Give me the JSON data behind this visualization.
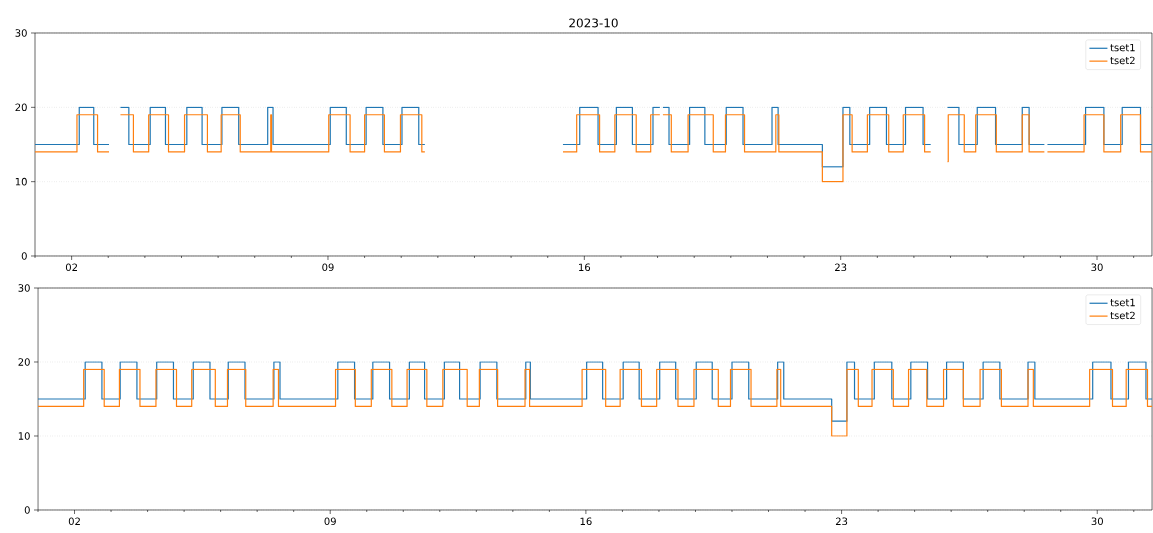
{
  "chart_data": [
    {
      "type": "step",
      "title": "2023-10",
      "xlim": [
        "2023-10-01T00:00",
        "2023-10-31T12:00"
      ],
      "ylim": [
        0,
        30
      ],
      "yticks": [
        0,
        10,
        20,
        30
      ],
      "grid": "y",
      "legend": "top right",
      "xticks": [
        {
          "value": "2023-10-01",
          "label": null
        },
        {
          "value": "2023-10-02",
          "label": "02"
        },
        {
          "value": "2023-10-03",
          "label": null
        },
        {
          "value": "2023-10-04",
          "label": null
        },
        {
          "value": "2023-10-05",
          "label": null
        },
        {
          "value": "2023-10-06",
          "label": null
        },
        {
          "value": "2023-10-07",
          "label": null
        },
        {
          "value": "2023-10-08",
          "label": null
        },
        {
          "value": "2023-10-09",
          "label": "09"
        },
        {
          "value": "2023-10-10",
          "label": null
        },
        {
          "value": "2023-10-11",
          "label": null
        },
        {
          "value": "2023-10-12",
          "label": null
        },
        {
          "value": "2023-10-13",
          "label": null
        },
        {
          "value": "2023-10-14",
          "label": null
        },
        {
          "value": "2023-10-15",
          "label": null
        },
        {
          "value": "2023-10-16",
          "label": "16"
        },
        {
          "value": "2023-10-17",
          "label": null
        },
        {
          "value": "2023-10-18",
          "label": null
        },
        {
          "value": "2023-10-19",
          "label": null
        },
        {
          "value": "2023-10-20",
          "label": null
        },
        {
          "value": "2023-10-21",
          "label": null
        },
        {
          "value": "2023-10-22",
          "label": null
        },
        {
          "value": "2023-10-23",
          "label": "23"
        },
        {
          "value": "2023-10-24",
          "label": null
        },
        {
          "value": "2023-10-25",
          "label": null
        },
        {
          "value": "2023-10-26",
          "label": null
        },
        {
          "value": "2023-10-27",
          "label": null
        },
        {
          "value": "2023-10-28",
          "label": null
        },
        {
          "value": "2023-10-29",
          "label": null
        },
        {
          "value": "2023-10-30",
          "label": "30"
        },
        {
          "value": "2023-10-31",
          "label": null
        }
      ],
      "series": [
        {
          "name": "tset1",
          "color": "#1f77b4",
          "x": [
            "2023-10-01T00:00",
            "2023-10-02T05:00",
            "2023-10-02T14:30",
            "2023-10-03T00:30",
            "2023-10-03T04:00",
            "2023-10-03T08:00",
            "2023-10-03T13:30",
            "2023-10-04T03:30",
            "2023-10-04T13:30",
            "2023-10-05T03:30",
            "2023-10-05T13:30",
            "2023-10-06T02:30",
            "2023-10-06T13:30",
            "2023-10-07T08:30",
            "2023-10-07T12:00",
            "2023-10-09T01:30",
            "2023-10-09T12:00",
            "2023-10-10T01:00",
            "2023-10-10T12:00",
            "2023-10-11T00:30",
            "2023-10-11T11:30",
            "2023-10-11T15:30",
            "2023-10-13T00:00",
            "2023-10-15T10:00",
            "2023-10-15T21:00",
            "2023-10-16T09:00",
            "2023-10-16T21:00",
            "2023-10-17T07:30",
            "2023-10-17T21:00",
            "2023-10-18T01:30",
            "2023-10-18T02:30",
            "2023-10-18T03:30",
            "2023-10-18T07:30",
            "2023-10-18T21:00",
            "2023-10-19T07:00",
            "2023-10-19T21:00",
            "2023-10-20T08:00",
            "2023-10-21T03:00",
            "2023-10-21T07:00",
            "2023-10-22T12:00",
            "2023-10-23T01:30",
            "2023-10-23T06:00",
            "2023-10-23T19:00",
            "2023-10-24T06:00",
            "2023-10-24T18:30",
            "2023-10-25T06:00",
            "2023-10-25T11:00",
            "2023-10-25T16:00",
            "2023-10-25T22:00",
            "2023-10-26T05:30",
            "2023-10-26T17:30",
            "2023-10-27T05:30",
            "2023-10-27T23:00",
            "2023-10-28T03:30",
            "2023-10-28T13:30",
            "2023-10-28T14:30",
            "2023-10-28T15:30",
            "2023-10-29T16:30",
            "2023-10-30T04:30",
            "2023-10-30T16:30",
            "2023-10-31T04:30",
            "2023-10-31T12:00"
          ],
          "values": [
            15,
            20,
            15,
            15,
            null,
            20,
            15,
            20,
            15,
            20,
            15,
            20,
            15,
            20,
            15,
            20,
            15,
            20,
            15,
            20,
            15,
            15,
            null,
            15,
            20,
            15,
            20,
            15,
            20,
            20,
            null,
            20,
            15,
            20,
            15,
            20,
            15,
            20,
            15,
            12,
            20,
            15,
            20,
            15,
            20,
            15,
            15,
            null,
            20,
            15,
            20,
            15,
            20,
            15,
            15,
            null,
            15,
            20,
            15,
            20,
            15,
            15
          ]
        },
        {
          "name": "tset2",
          "color": "#ff7f0e",
          "x": [
            "2023-10-01T00:00",
            "2023-10-02T03:30",
            "2023-10-02T17:00",
            "2023-10-03T00:30",
            "2023-10-03T04:00",
            "2023-10-03T08:00",
            "2023-10-03T16:30",
            "2023-10-04T02:30",
            "2023-10-04T15:30",
            "2023-10-05T02:00",
            "2023-10-05T17:00",
            "2023-10-06T02:00",
            "2023-10-06T14:30",
            "2023-10-07T10:30",
            "2023-10-07T11:00",
            "2023-10-09T00:30",
            "2023-10-09T14:30",
            "2023-10-10T00:00",
            "2023-10-10T13:00",
            "2023-10-10T23:30",
            "2023-10-11T13:30",
            "2023-10-11T15:30",
            "2023-10-13T00:00",
            "2023-10-15T10:00",
            "2023-10-15T19:00",
            "2023-10-16T10:00",
            "2023-10-16T20:00",
            "2023-10-17T10:00",
            "2023-10-17T19:30",
            "2023-10-18T01:30",
            "2023-10-18T02:30",
            "2023-10-18T03:30",
            "2023-10-18T09:00",
            "2023-10-18T20:00",
            "2023-10-19T12:30",
            "2023-10-19T20:30",
            "2023-10-20T09:00",
            "2023-10-21T05:30",
            "2023-10-21T07:30",
            "2023-10-22T12:00",
            "2023-10-23T01:30",
            "2023-10-23T07:30",
            "2023-10-23T17:30",
            "2023-10-24T07:30",
            "2023-10-24T17:00",
            "2023-10-25T07:00",
            "2023-10-25T11:00",
            "2023-10-25T16:00",
            "2023-10-25T22:00",
            "2023-10-25T22:30",
            "2023-10-26T09:00",
            "2023-10-26T16:30",
            "2023-10-27T06:00",
            "2023-10-27T23:00",
            "2023-10-28T03:30",
            "2023-10-28T13:30",
            "2023-10-28T14:30",
            "2023-10-28T15:30",
            "2023-10-29T15:30",
            "2023-10-30T04:30",
            "2023-10-30T15:30",
            "2023-10-31T04:30",
            "2023-10-31T12:00"
          ],
          "values": [
            14,
            19,
            14,
            14,
            null,
            19,
            14,
            19,
            14,
            19,
            14,
            19,
            14,
            19,
            14,
            19,
            14,
            19,
            14,
            19,
            14,
            14,
            null,
            14,
            19,
            14,
            19,
            14,
            19,
            19,
            null,
            19,
            14,
            19,
            14,
            19,
            14,
            19,
            14,
            10,
            19,
            14,
            19,
            14,
            19,
            14,
            14,
            null,
            12.7,
            19,
            14,
            19,
            14,
            19,
            14,
            14,
            null,
            14,
            19,
            14,
            19,
            14,
            14
          ]
        }
      ]
    },
    {
      "type": "step",
      "xlim": [
        "2023-10-01T00:00",
        "2023-10-31T12:00"
      ],
      "ylim": [
        0,
        30
      ],
      "yticks": [
        0,
        10,
        20,
        30
      ],
      "grid": "y",
      "legend": "top right",
      "xticks": [
        {
          "value": "2023-10-01",
          "label": null
        },
        {
          "value": "2023-10-02",
          "label": "02"
        },
        {
          "value": "2023-10-03",
          "label": null
        },
        {
          "value": "2023-10-04",
          "label": null
        },
        {
          "value": "2023-10-05",
          "label": null
        },
        {
          "value": "2023-10-06",
          "label": null
        },
        {
          "value": "2023-10-07",
          "label": null
        },
        {
          "value": "2023-10-08",
          "label": null
        },
        {
          "value": "2023-10-09",
          "label": "09"
        },
        {
          "value": "2023-10-10",
          "label": null
        },
        {
          "value": "2023-10-11",
          "label": null
        },
        {
          "value": "2023-10-12",
          "label": null
        },
        {
          "value": "2023-10-13",
          "label": null
        },
        {
          "value": "2023-10-14",
          "label": null
        },
        {
          "value": "2023-10-15",
          "label": null
        },
        {
          "value": "2023-10-16",
          "label": "16"
        },
        {
          "value": "2023-10-17",
          "label": null
        },
        {
          "value": "2023-10-18",
          "label": null
        },
        {
          "value": "2023-10-19",
          "label": null
        },
        {
          "value": "2023-10-20",
          "label": null
        },
        {
          "value": "2023-10-21",
          "label": null
        },
        {
          "value": "2023-10-22",
          "label": null
        },
        {
          "value": "2023-10-23",
          "label": "23"
        },
        {
          "value": "2023-10-24",
          "label": null
        },
        {
          "value": "2023-10-25",
          "label": null
        },
        {
          "value": "2023-10-26",
          "label": null
        },
        {
          "value": "2023-10-27",
          "label": null
        },
        {
          "value": "2023-10-28",
          "label": null
        },
        {
          "value": "2023-10-29",
          "label": null
        },
        {
          "value": "2023-10-30",
          "label": "30"
        },
        {
          "value": "2023-10-31",
          "label": null
        }
      ],
      "series": [
        {
          "name": "tset1",
          "color": "#1f77b4",
          "x": [
            "2023-10-01T00:00",
            "2023-10-02T07:00",
            "2023-10-02T18:00",
            "2023-10-03T06:00",
            "2023-10-03T17:00",
            "2023-10-04T06:00",
            "2023-10-04T17:00",
            "2023-10-05T06:00",
            "2023-10-05T17:00",
            "2023-10-06T05:00",
            "2023-10-06T16:00",
            "2023-10-07T11:00",
            "2023-10-07T15:00",
            "2023-10-09T05:00",
            "2023-10-09T16:00",
            "2023-10-10T04:00",
            "2023-10-10T15:00",
            "2023-10-11T04:00",
            "2023-10-11T14:00",
            "2023-10-12T03:00",
            "2023-10-12T13:00",
            "2023-10-13T02:30",
            "2023-10-13T13:30",
            "2023-10-14T08:30",
            "2023-10-14T11:30",
            "2023-10-16T00:30",
            "2023-10-16T11:00",
            "2023-10-17T00:30",
            "2023-10-17T11:00",
            "2023-10-18T00:30",
            "2023-10-18T11:00",
            "2023-10-19T00:30",
            "2023-10-19T11:00",
            "2023-10-20T00:00",
            "2023-10-20T11:00",
            "2023-10-21T06:00",
            "2023-10-21T10:00",
            "2023-10-22T17:30",
            "2023-10-23T03:30",
            "2023-10-23T08:30",
            "2023-10-23T21:30",
            "2023-10-24T09:00",
            "2023-10-24T21:30",
            "2023-10-25T08:30",
            "2023-10-25T21:00",
            "2023-10-26T08:00",
            "2023-10-26T21:00",
            "2023-10-27T08:00",
            "2023-10-28T02:30",
            "2023-10-28T07:00",
            "2023-10-29T21:00",
            "2023-10-30T09:00",
            "2023-10-30T20:30",
            "2023-10-31T08:00",
            "2023-10-31T12:00"
          ],
          "values": [
            15,
            20,
            15,
            20,
            15,
            20,
            15,
            20,
            15,
            20,
            15,
            20,
            15,
            20,
            15,
            20,
            15,
            20,
            15,
            20,
            15,
            20,
            15,
            20,
            15,
            20,
            15,
            20,
            15,
            20,
            15,
            20,
            15,
            20,
            15,
            20,
            15,
            12,
            20,
            15,
            20,
            15,
            20,
            15,
            20,
            15,
            20,
            15,
            20,
            15,
            20,
            15,
            20,
            15,
            15
          ]
        },
        {
          "name": "tset2",
          "color": "#ff7f0e",
          "x": [
            "2023-10-01T00:00",
            "2023-10-02T06:00",
            "2023-10-02T19:30",
            "2023-10-03T05:30",
            "2023-10-03T19:00",
            "2023-10-04T05:30",
            "2023-10-04T19:00",
            "2023-10-05T05:00",
            "2023-10-05T20:30",
            "2023-10-06T04:30",
            "2023-10-06T16:30",
            "2023-10-07T10:30",
            "2023-10-07T14:00",
            "2023-10-09T03:30",
            "2023-10-09T16:30",
            "2023-10-10T03:00",
            "2023-10-10T16:30",
            "2023-10-11T02:30",
            "2023-10-11T15:30",
            "2023-10-12T02:00",
            "2023-10-12T18:00",
            "2023-10-13T02:00",
            "2023-10-13T14:00",
            "2023-10-14T08:00",
            "2023-10-14T11:00",
            "2023-10-15T21:30",
            "2023-10-16T13:00",
            "2023-10-16T22:30",
            "2023-10-17T12:30",
            "2023-10-17T22:30",
            "2023-10-18T12:30",
            "2023-10-18T23:00",
            "2023-10-19T15:00",
            "2023-10-19T23:00",
            "2023-10-20T12:30",
            "2023-10-21T05:30",
            "2023-10-21T08:00",
            "2023-10-22T17:30",
            "2023-10-23T03:30",
            "2023-10-23T11:00",
            "2023-10-23T20:00",
            "2023-10-24T10:00",
            "2023-10-24T20:00",
            "2023-10-25T08:00",
            "2023-10-25T19:00",
            "2023-10-26T08:00",
            "2023-10-26T19:00",
            "2023-10-27T09:00",
            "2023-10-28T02:30",
            "2023-10-28T06:00",
            "2023-10-29T19:00",
            "2023-10-30T10:00",
            "2023-10-30T19:00",
            "2023-10-31T09:00",
            "2023-10-31T12:00"
          ],
          "values": [
            14,
            19,
            14,
            19,
            14,
            19,
            14,
            19,
            14,
            19,
            14,
            19,
            14,
            19,
            14,
            19,
            14,
            19,
            14,
            19,
            14,
            19,
            14,
            19,
            14,
            19,
            14,
            19,
            14,
            19,
            14,
            19,
            14,
            19,
            14,
            19,
            14,
            10,
            19,
            14,
            19,
            14,
            19,
            14,
            19,
            14,
            19,
            14,
            19,
            14,
            19,
            14,
            19,
            14,
            14
          ]
        }
      ]
    }
  ]
}
